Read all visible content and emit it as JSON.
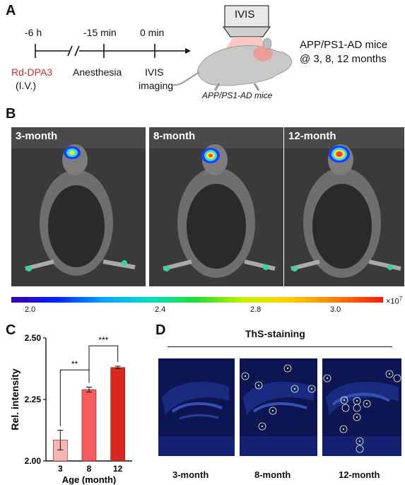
{
  "panel_a": {
    "letter": "A",
    "timeline": [
      {
        "time": "-6 h",
        "label": "Rd-DPA3",
        "sublabel": "(I.V.)"
      },
      {
        "time": "-15 min",
        "label": "Anesthesia",
        "sublabel": ""
      },
      {
        "time": "0 min",
        "label": "IVIS",
        "sublabel": "imaging"
      }
    ],
    "device_label": "IVIS",
    "mouse_caption": "APP/PS1-AD mice",
    "cohort_line1": "APP/PS1-AD mice",
    "cohort_line2": "@ 3, 8, 12 months"
  },
  "panel_b": {
    "letter": "B",
    "images": [
      "3-month",
      "8-month",
      "12-month"
    ],
    "colorbar": {
      "ticks": [
        "2.0",
        "2.4",
        "2.8",
        "3.0"
      ],
      "unit_base": "×10",
      "unit_exp": "7"
    }
  },
  "panel_c": {
    "letter": "C",
    "chart_data": {
      "type": "bar",
      "categories": [
        "3",
        "8",
        "12"
      ],
      "values": [
        2.085,
        2.29,
        2.38
      ],
      "errors": [
        0.04,
        0.01,
        0.005
      ],
      "colors": [
        "#f7b6b6",
        "#f25c5c",
        "#d8281f"
      ],
      "xlabel": "Age (month)",
      "ylabel": "Rel. intensity",
      "ylim": [
        2.0,
        2.5
      ],
      "yticks": [
        "2.00",
        "2.25",
        "2.50"
      ],
      "significance": [
        {
          "pair": [
            "3",
            "8"
          ],
          "label": "**"
        },
        {
          "pair": [
            "8",
            "12"
          ],
          "label": "***"
        }
      ]
    }
  },
  "panel_d": {
    "letter": "D",
    "title": "ThS-staining",
    "images": [
      "3-month",
      "8-month",
      "12-month"
    ]
  }
}
